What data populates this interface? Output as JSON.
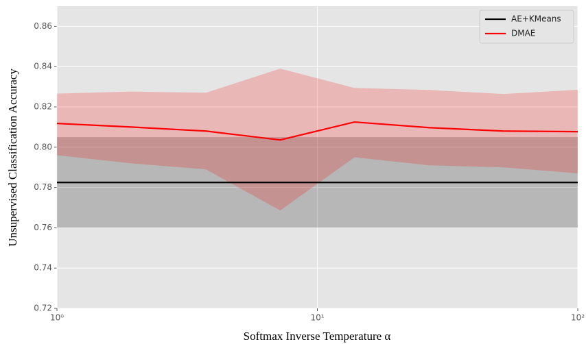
{
  "chart_data": {
    "type": "line",
    "x_label": "Softmax Inverse Temperature α",
    "y_label": "Unsupervised Classification Accuracy",
    "x": [
      1,
      1.93,
      3.73,
      7.2,
      13.89,
      26.83,
      51.79,
      100
    ],
    "series": [
      {
        "name": "AE+KMeans",
        "color": "#000000",
        "values": [
          0.7825,
          0.7825,
          0.7825,
          0.7825,
          0.7825,
          0.7825,
          0.7825,
          0.7825
        ],
        "lower": [
          0.76,
          0.76,
          0.76,
          0.76,
          0.76,
          0.76,
          0.76,
          0.76
        ],
        "upper": [
          0.805,
          0.805,
          0.805,
          0.805,
          0.805,
          0.805,
          0.805,
          0.805
        ]
      },
      {
        "name": "DMAE",
        "color": "#ff0000",
        "values": [
          0.8118,
          0.81,
          0.808,
          0.8036,
          0.8125,
          0.8097,
          0.808,
          0.8077
        ],
        "lower": [
          0.796,
          0.792,
          0.789,
          0.7686,
          0.795,
          0.791,
          0.79,
          0.787
        ],
        "upper": [
          0.8266,
          0.8276,
          0.827,
          0.839,
          0.8294,
          0.8284,
          0.8264,
          0.8285
        ]
      }
    ],
    "xscale": "log",
    "xlim": [
      1,
      100
    ],
    "xticks": [
      {
        "value": 1,
        "label": "10⁰"
      },
      {
        "value": 10,
        "label": "10¹"
      },
      {
        "value": 100,
        "label": "10²"
      }
    ],
    "ylim": [
      0.72,
      0.87
    ],
    "yticks": [
      0.72,
      0.74,
      0.76,
      0.78,
      {
        "value": 0.8,
        "label": "0.80"
      },
      0.82,
      0.84,
      0.86
    ],
    "grid": true,
    "legend": "upper right"
  }
}
